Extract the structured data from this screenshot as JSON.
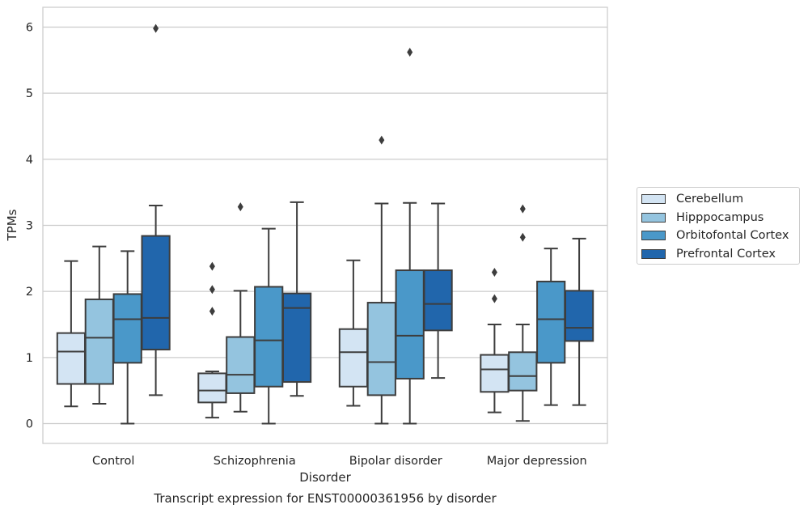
{
  "chart_data": {
    "type": "box",
    "title": "Transcript expression for ENST00000361956 by disorder",
    "xlabel": "Disorder",
    "ylabel": "TPMs",
    "ylim": [
      -0.3,
      6.3
    ],
    "yticks": [
      "0",
      "1",
      "2",
      "3",
      "4",
      "5",
      "6"
    ],
    "grid": true,
    "legend_position": "right",
    "categories": [
      "Control",
      "Schizophrenia",
      "Bipolar disorder",
      "Major depression"
    ],
    "series": [
      {
        "name": "Cerebellum",
        "color": "#d3e4f3",
        "boxes": [
          {
            "whislo": 0.26,
            "q1": 0.6,
            "median": 1.09,
            "q3": 1.37,
            "whishi": 2.46,
            "fliers": []
          },
          {
            "whislo": 0.09,
            "q1": 0.32,
            "median": 0.5,
            "q3": 0.76,
            "whishi": 0.79,
            "fliers": [
              1.7,
              2.03,
              2.38
            ]
          },
          {
            "whislo": 0.27,
            "q1": 0.56,
            "median": 1.08,
            "q3": 1.43,
            "whishi": 2.47,
            "fliers": []
          },
          {
            "whislo": 0.17,
            "q1": 0.48,
            "median": 0.82,
            "q3": 1.04,
            "whishi": 1.5,
            "fliers": [
              1.89,
              2.29
            ]
          }
        ]
      },
      {
        "name": "Hipppocampus",
        "color": "#94c4df",
        "boxes": [
          {
            "whislo": 0.3,
            "q1": 0.6,
            "median": 1.3,
            "q3": 1.88,
            "whishi": 2.68,
            "fliers": []
          },
          {
            "whislo": 0.18,
            "q1": 0.46,
            "median": 0.74,
            "q3": 1.31,
            "whishi": 2.01,
            "fliers": [
              3.28
            ]
          },
          {
            "whislo": 0.0,
            "q1": 0.43,
            "median": 0.93,
            "q3": 1.83,
            "whishi": 3.33,
            "fliers": [
              4.29
            ]
          },
          {
            "whislo": 0.04,
            "q1": 0.5,
            "median": 0.72,
            "q3": 1.08,
            "whishi": 1.5,
            "fliers": [
              2.82,
              3.25
            ]
          }
        ]
      },
      {
        "name": "Orbitofontal Cortex",
        "color": "#4a98c9",
        "boxes": [
          {
            "whislo": 0.0,
            "q1": 0.92,
            "median": 1.58,
            "q3": 1.96,
            "whishi": 2.61,
            "fliers": []
          },
          {
            "whislo": 0.0,
            "q1": 0.56,
            "median": 1.26,
            "q3": 2.07,
            "whishi": 2.95,
            "fliers": []
          },
          {
            "whislo": 0.0,
            "q1": 0.68,
            "median": 1.33,
            "q3": 2.32,
            "whishi": 3.34,
            "fliers": [
              5.62
            ]
          },
          {
            "whislo": 0.28,
            "q1": 0.92,
            "median": 1.58,
            "q3": 2.15,
            "whishi": 2.65,
            "fliers": []
          }
        ]
      },
      {
        "name": "Prefrontal Cortex",
        "color": "#2166ac",
        "boxes": [
          {
            "whislo": 0.43,
            "q1": 1.12,
            "median": 1.6,
            "q3": 2.84,
            "whishi": 3.3,
            "fliers": [
              5.98
            ]
          },
          {
            "whislo": 0.42,
            "q1": 0.63,
            "median": 1.75,
            "q3": 1.97,
            "whishi": 3.35,
            "fliers": []
          },
          {
            "whislo": 0.69,
            "q1": 1.41,
            "median": 1.81,
            "q3": 2.32,
            "whishi": 3.33,
            "fliers": []
          },
          {
            "whislo": 0.28,
            "q1": 1.25,
            "median": 1.45,
            "q3": 2.01,
            "whishi": 2.8,
            "fliers": []
          }
        ]
      }
    ]
  }
}
